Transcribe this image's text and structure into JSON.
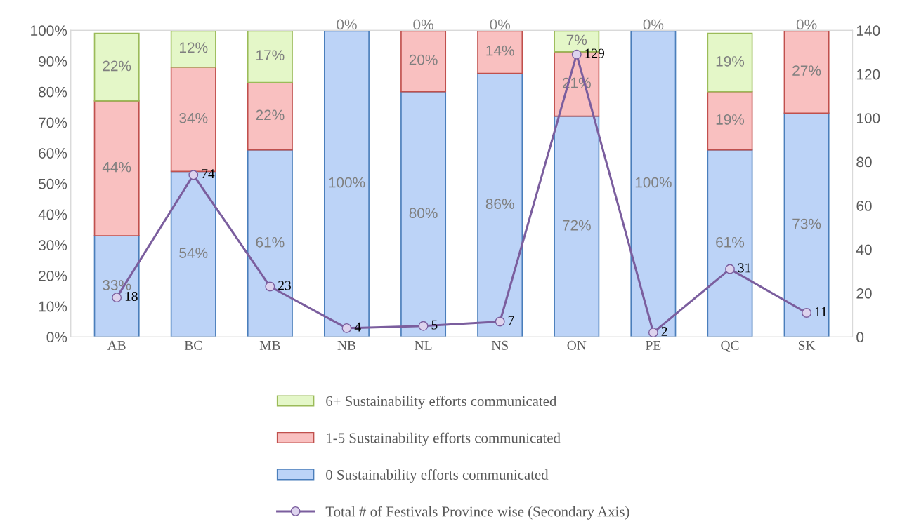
{
  "chart_data": {
    "type": "bar",
    "stacked": true,
    "categories": [
      "AB",
      "BC",
      "MB",
      "NB",
      "NL",
      "NS",
      "ON",
      "PE",
      "QC",
      "SK"
    ],
    "series": [
      {
        "name": "0 Sustainability efforts communicated",
        "color": "#bcd3f7",
        "values": [
          33,
          54,
          61,
          100,
          80,
          86,
          72,
          100,
          61,
          73
        ],
        "value_labels": [
          "33%",
          "54%",
          "61%",
          "100%",
          "80%",
          "86%",
          "72%",
          "100%",
          "61%",
          "73%"
        ]
      },
      {
        "name": "1-5 Sustainability efforts communicated",
        "color": "#f9c0c0",
        "values": [
          44,
          34,
          22,
          0,
          20,
          14,
          21,
          0,
          19,
          27
        ],
        "value_labels": [
          "44%",
          "34%",
          "22%",
          null,
          "20%",
          "14%",
          "21%",
          null,
          "19%",
          "27%"
        ]
      },
      {
        "name": "6+ Sustainability efforts communicated",
        "color": "#e4f7c8",
        "values": [
          22,
          12,
          17,
          0,
          0,
          0,
          7,
          0,
          19,
          0
        ],
        "value_labels": [
          "22%",
          "12%",
          "17%",
          "0%",
          "0%",
          "0%",
          "7%",
          "0%",
          "19%",
          "0%"
        ]
      },
      {
        "name": "Total # of Festivals Province wise (Secondary Axis)",
        "type": "line",
        "axis": "y2",
        "color": "#7b5e9e",
        "marker": "circle",
        "values": [
          18,
          74,
          23,
          4,
          5,
          7,
          129,
          2,
          31,
          11
        ],
        "value_labels": [
          "18",
          "74",
          "23",
          "4",
          "5",
          "7",
          "129",
          "2",
          "31",
          "11"
        ]
      }
    ],
    "ylim": [
      0,
      100
    ],
    "yticks": [
      {
        "value": 0,
        "label": "0%"
      },
      {
        "value": 10,
        "label": "10%"
      },
      {
        "value": 20,
        "label": "20%"
      },
      {
        "value": 30,
        "label": "30%"
      },
      {
        "value": 40,
        "label": "40%"
      },
      {
        "value": 50,
        "label": "50%"
      },
      {
        "value": 60,
        "label": "60%"
      },
      {
        "value": 70,
        "label": "70%"
      },
      {
        "value": 80,
        "label": "80%"
      },
      {
        "value": 90,
        "label": "90%"
      },
      {
        "value": 100,
        "label": "100%"
      }
    ],
    "y2lim": [
      0,
      140
    ],
    "y2ticks": [
      0,
      20,
      40,
      60,
      80,
      100,
      120,
      140
    ],
    "legend": "bottom",
    "grid": false
  }
}
